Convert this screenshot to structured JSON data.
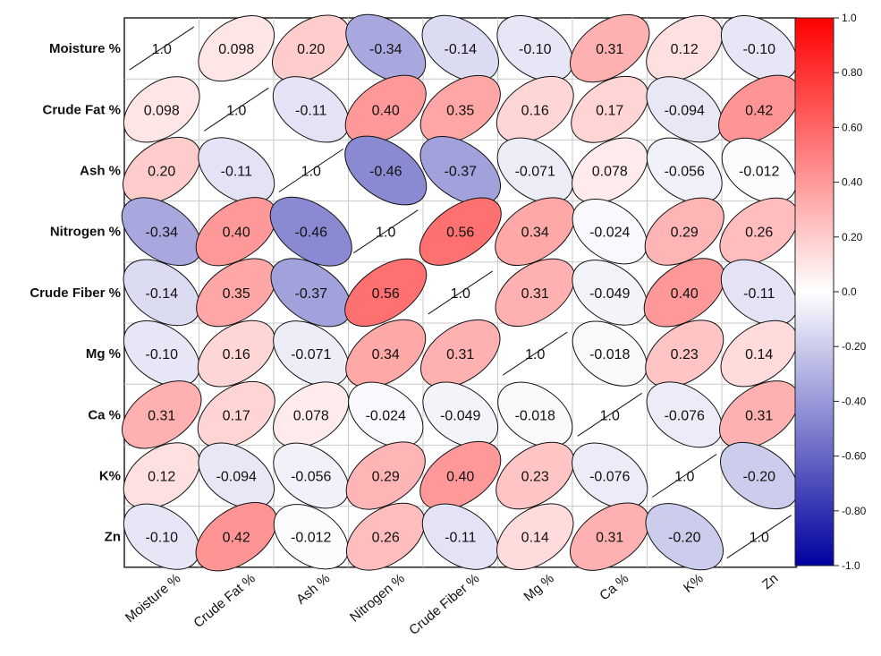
{
  "chart_data": {
    "type": "heatmap",
    "subtype": "correlation-ellipse-matrix",
    "variables": [
      "Moisture %",
      "Crude Fat %",
      "Ash %",
      "Nitrogen %",
      "Crude Fiber %",
      "Mg %",
      "Ca %",
      "K%",
      "Zn"
    ],
    "matrix": [
      [
        1.0,
        0.098,
        0.2,
        -0.34,
        -0.14,
        -0.1,
        0.31,
        0.12,
        -0.1
      ],
      [
        0.098,
        1.0,
        -0.11,
        0.4,
        0.35,
        0.16,
        0.17,
        -0.094,
        0.42
      ],
      [
        0.2,
        -0.11,
        1.0,
        -0.46,
        -0.37,
        -0.071,
        0.078,
        -0.056,
        -0.012
      ],
      [
        -0.34,
        0.4,
        -0.46,
        1.0,
        0.56,
        0.34,
        -0.024,
        0.29,
        0.26
      ],
      [
        -0.14,
        0.35,
        -0.37,
        0.56,
        1.0,
        0.31,
        -0.049,
        0.4,
        -0.11
      ],
      [
        -0.1,
        0.16,
        -0.071,
        0.34,
        0.31,
        1.0,
        -0.018,
        0.23,
        0.14
      ],
      [
        0.31,
        0.17,
        0.078,
        -0.024,
        -0.049,
        -0.018,
        1.0,
        -0.076,
        0.31
      ],
      [
        0.12,
        -0.094,
        -0.056,
        0.29,
        0.4,
        0.23,
        -0.076,
        1.0,
        -0.2
      ],
      [
        -0.1,
        0.42,
        -0.012,
        0.26,
        -0.11,
        0.14,
        0.31,
        -0.2,
        1.0
      ]
    ],
    "labels": [
      [
        "1.0",
        "0.098",
        "0.20",
        "-0.34",
        "-0.14",
        "-0.10",
        "0.31",
        "0.12",
        "-0.10"
      ],
      [
        "0.098",
        "1.0",
        "-0.11",
        "0.40",
        "0.35",
        "0.16",
        "0.17",
        "-0.094",
        "0.42"
      ],
      [
        "0.20",
        "-0.11",
        "1.0",
        "-0.46",
        "-0.37",
        "-0.071",
        "0.078",
        "-0.056",
        "-0.012"
      ],
      [
        "-0.34",
        "0.40",
        "-0.46",
        "1.0",
        "0.56",
        "0.34",
        "-0.024",
        "0.29",
        "0.26"
      ],
      [
        "-0.14",
        "0.35",
        "-0.37",
        "0.56",
        "1.0",
        "0.31",
        "-0.049",
        "0.40",
        "-0.11"
      ],
      [
        "-0.10",
        "0.16",
        "-0.071",
        "0.34",
        "0.31",
        "1.0",
        "-0.018",
        "0.23",
        "0.14"
      ],
      [
        "0.31",
        "0.17",
        "0.078",
        "-0.024",
        "-0.049",
        "-0.018",
        "1.0",
        "-0.076",
        "0.31"
      ],
      [
        "0.12",
        "-0.094",
        "-0.056",
        "0.29",
        "0.40",
        "0.23",
        "-0.076",
        "1.0",
        "-0.20"
      ],
      [
        "-0.10",
        "0.42",
        "-0.012",
        "0.26",
        "-0.11",
        "0.14",
        "0.31",
        "-0.20",
        "1.0"
      ]
    ],
    "colorbar": {
      "range": [
        -1.0,
        1.0
      ],
      "ticks": [
        "1.0",
        "0.80",
        "0.60",
        "0.40",
        "0.20",
        "0.0",
        "-0.20",
        "-0.40",
        "-0.60",
        "-0.80",
        "-1.0"
      ],
      "colors": {
        "negative": "#0000a0",
        "neutral": "#ffffff",
        "positive": "#ff0000"
      }
    },
    "title": "",
    "xlabel": "",
    "ylabel": "",
    "grid": true,
    "legend": "colorbar-right"
  }
}
